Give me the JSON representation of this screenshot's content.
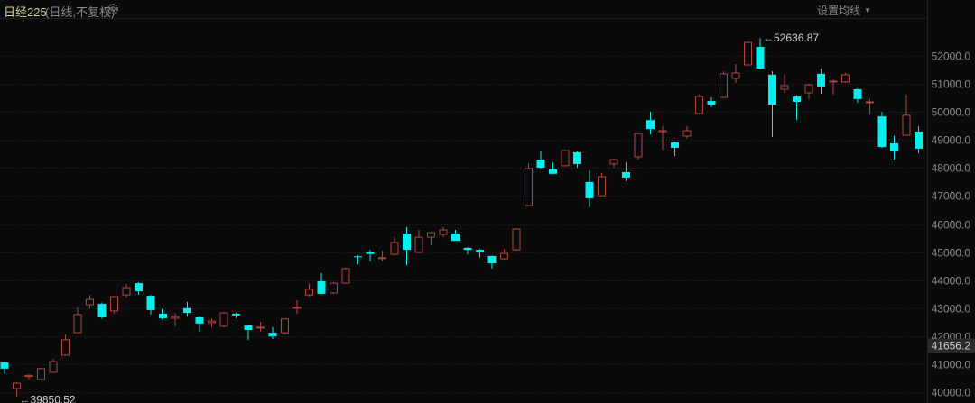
{
  "header": {
    "title": "日经225",
    "subtitle": "(日线,不复权)",
    "settings_icon": "gear-icon",
    "ma_button": "设置均线",
    "ma_caret_icon": "caret-down-icon"
  },
  "colors": {
    "background": "#0a0a0a",
    "up": "#b0463c",
    "down": "#00f0f0",
    "grid": "#262626",
    "axis_text": "#8c8c8c"
  },
  "chart_data": {
    "type": "candlestick",
    "title": "日经225",
    "yaxis_position": "right",
    "ylim": [
      39800,
      52900
    ],
    "yticks": [
      40000,
      41000,
      42000,
      43000,
      44000,
      45000,
      46000,
      47000,
      48000,
      49000,
      50000,
      51000,
      52000
    ],
    "ytick_labels": [
      "40000.0",
      "41000.0",
      "42000.0",
      "43000.0",
      "44000.0",
      "45000.0",
      "46000.0",
      "47000.0",
      "48000.0",
      "49000.0",
      "50000.0",
      "51000.0",
      "52000.0"
    ],
    "grid": true,
    "highlight_price": {
      "value": 41656.2,
      "label": "41656.2"
    },
    "annotations": [
      {
        "type": "max",
        "value": 52636.87,
        "label": "52636.87",
        "candle_index": 62
      },
      {
        "type": "min",
        "value": 39850.52,
        "label": "39850.52",
        "candle_index": 1
      }
    ],
    "ohlc": [
      [
        41060,
        41070,
        40650,
        40840
      ],
      [
        40130,
        40360,
        39850.52,
        40320
      ],
      [
        40560,
        40650,
        40450,
        40600
      ],
      [
        40450,
        40870,
        40430,
        40840
      ],
      [
        40710,
        41190,
        40700,
        41090
      ],
      [
        41320,
        42060,
        41300,
        41870
      ],
      [
        42120,
        43030,
        42100,
        42770
      ],
      [
        43120,
        43470,
        42990,
        43310
      ],
      [
        43150,
        43200,
        42620,
        42670
      ],
      [
        42900,
        43440,
        42800,
        43410
      ],
      [
        43470,
        43860,
        43380,
        43730
      ],
      [
        43890,
        43920,
        43470,
        43600
      ],
      [
        43440,
        43470,
        42770,
        42930
      ],
      [
        42800,
        42960,
        42600,
        42640
      ],
      [
        42640,
        42830,
        42350,
        42700
      ],
      [
        43000,
        43220,
        42700,
        42830
      ],
      [
        42670,
        42700,
        42160,
        42450
      ],
      [
        42480,
        42640,
        42320,
        42540
      ],
      [
        42350,
        42860,
        42320,
        42830
      ],
      [
        42800,
        42830,
        42640,
        42740
      ],
      [
        42380,
        42420,
        41870,
        42220
      ],
      [
        42290,
        42510,
        42160,
        42320
      ],
      [
        42120,
        42320,
        41900,
        41990
      ],
      [
        42120,
        42640,
        42090,
        42610
      ],
      [
        43000,
        43280,
        42800,
        43030
      ],
      [
        43470,
        43890,
        43410,
        43670
      ],
      [
        43960,
        44250,
        43490,
        43510
      ],
      [
        43540,
        43920,
        43510,
        43890
      ],
      [
        43890,
        44440,
        43860,
        44410
      ],
      [
        44850,
        44890,
        44570,
        44830
      ],
      [
        44990,
        45080,
        44670,
        44930
      ],
      [
        44770,
        45050,
        44670,
        44800
      ],
      [
        44920,
        45530,
        44890,
        45340
      ],
      [
        45660,
        45890,
        44540,
        45080
      ],
      [
        44990,
        45790,
        44950,
        45530
      ],
      [
        45530,
        45720,
        45240,
        45690
      ],
      [
        45630,
        45890,
        45530,
        45790
      ],
      [
        45660,
        45790,
        45400,
        45400
      ],
      [
        45150,
        45180,
        44920,
        45080
      ],
      [
        45080,
        45110,
        44800,
        44990
      ],
      [
        44860,
        44880,
        44410,
        44600
      ],
      [
        44760,
        45110,
        44730,
        44950
      ],
      [
        45080,
        45850,
        45050,
        45820
      ],
      [
        46660,
        48170,
        46630,
        47980
      ],
      [
        48300,
        48590,
        47980,
        48010
      ],
      [
        47950,
        48200,
        47770,
        47790
      ],
      [
        48080,
        48650,
        48050,
        48620
      ],
      [
        48560,
        48590,
        48010,
        48140
      ],
      [
        47500,
        47910,
        46600,
        46920
      ],
      [
        47010,
        47820,
        46980,
        47690
      ],
      [
        48140,
        48330,
        48010,
        48300
      ],
      [
        47850,
        48200,
        47530,
        47660
      ],
      [
        48400,
        49260,
        48300,
        49230
      ],
      [
        49710,
        50000,
        49200,
        49390
      ],
      [
        49290,
        49490,
        48650,
        49330
      ],
      [
        48910,
        48940,
        48430,
        48720
      ],
      [
        49140,
        49490,
        49040,
        49330
      ],
      [
        49940,
        50620,
        49910,
        50550
      ],
      [
        50390,
        50520,
        50170,
        50260
      ],
      [
        50520,
        51450,
        50490,
        51360
      ],
      [
        51200,
        51710,
        51040,
        51390
      ],
      [
        51680,
        52510,
        51650,
        52480
      ],
      [
        52320,
        52636.87,
        51520,
        51550
      ],
      [
        51330,
        51450,
        49110,
        50260
      ],
      [
        50810,
        51330,
        50680,
        50940
      ],
      [
        50550,
        50580,
        49720,
        50360
      ],
      [
        50680,
        51000,
        50450,
        50970
      ],
      [
        51360,
        51550,
        50650,
        50910
      ],
      [
        51070,
        51160,
        50620,
        51100
      ],
      [
        51070,
        51390,
        51040,
        51330
      ],
      [
        50810,
        50840,
        50330,
        50460
      ],
      [
        50330,
        50460,
        49910,
        50360
      ],
      [
        49840,
        50000,
        48720,
        48750
      ],
      [
        48880,
        49140,
        48300,
        48590
      ],
      [
        49170,
        50620,
        49140,
        49880
      ],
      [
        49300,
        49490,
        48530,
        48690
      ]
    ]
  }
}
